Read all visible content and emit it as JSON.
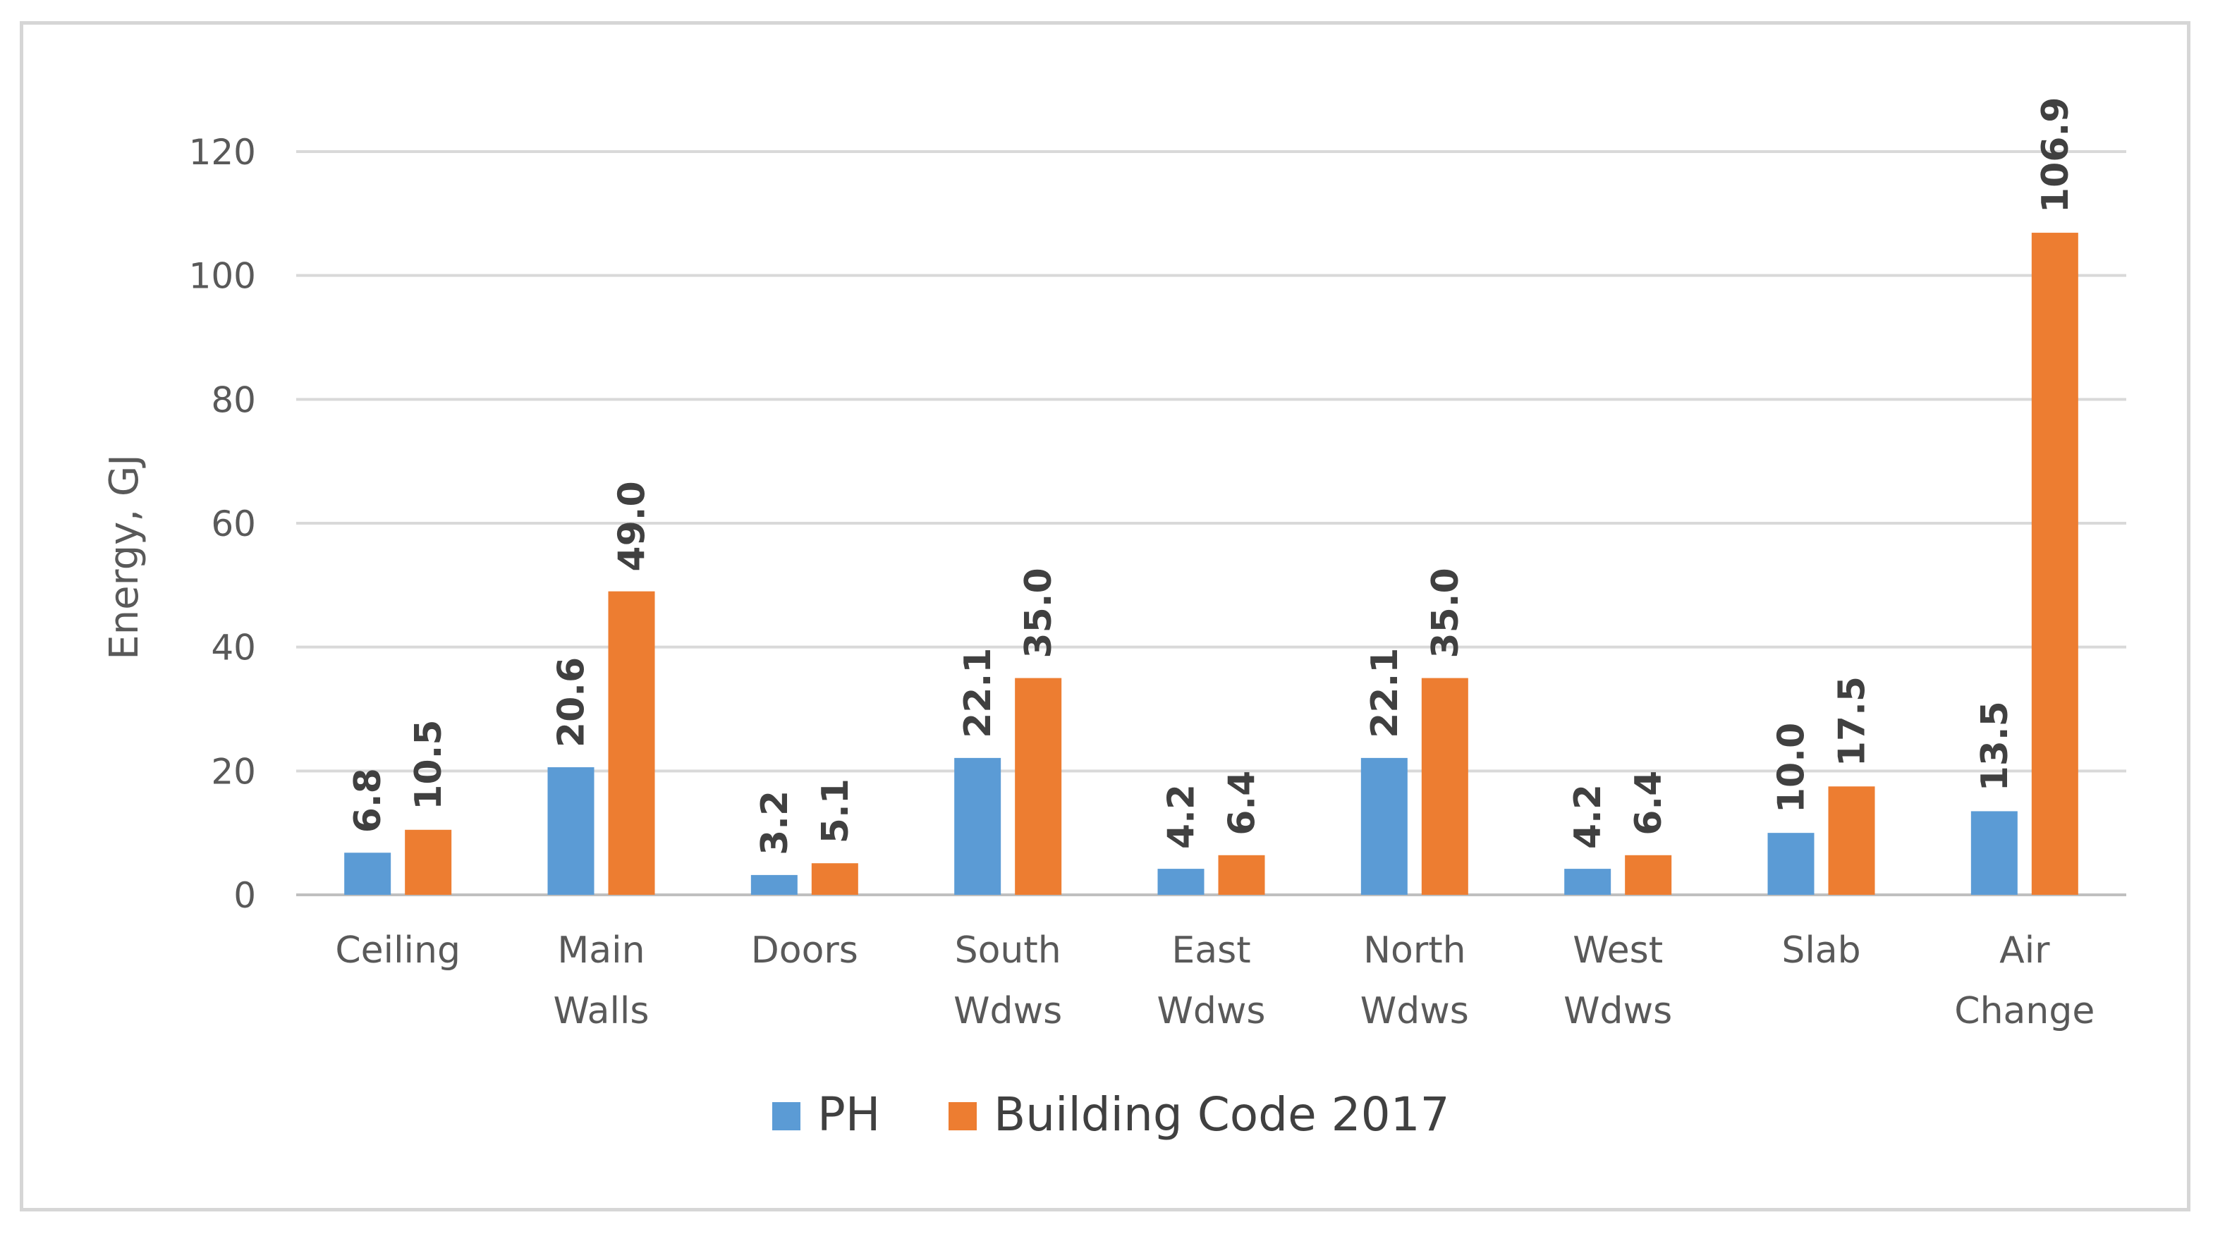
{
  "chart_data": {
    "type": "bar",
    "title": "",
    "xlabel": "",
    "ylabel": "Energy, GJ",
    "ylim": [
      0,
      120
    ],
    "yticks": [
      0,
      20,
      40,
      60,
      80,
      100,
      120
    ],
    "grid": true,
    "legend_position": "bottom",
    "categories": [
      [
        "Ceiling"
      ],
      [
        "Main",
        "Walls"
      ],
      [
        "Doors"
      ],
      [
        "South",
        "Wdws"
      ],
      [
        "East",
        "Wdws"
      ],
      [
        "North",
        "Wdws"
      ],
      [
        "West",
        "Wdws"
      ],
      [
        "Slab"
      ],
      [
        "Air",
        "Change"
      ]
    ],
    "series": [
      {
        "name": "PH",
        "color": "#5b9bd5",
        "values": [
          6.8,
          20.6,
          3.2,
          22.1,
          4.2,
          22.1,
          4.2,
          10.0,
          13.5
        ],
        "labels": [
          "6.8",
          "20.6",
          "3.2",
          "22.1",
          "4.2",
          "22.1",
          "4.2",
          "10.0",
          "13.5"
        ]
      },
      {
        "name": "Building Code 2017",
        "color": "#ed7d31",
        "values": [
          10.5,
          49.0,
          5.1,
          35.0,
          6.4,
          35.0,
          6.4,
          17.5,
          106.9
        ],
        "labels": [
          "10.5",
          "49.0",
          "5.1",
          "35.0",
          "6.4",
          "35.0",
          "6.4",
          "17.5",
          "106.9"
        ]
      }
    ]
  }
}
